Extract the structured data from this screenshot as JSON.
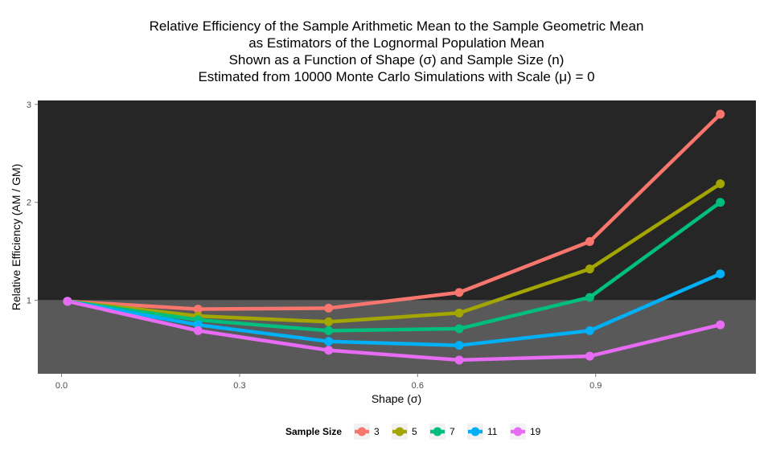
{
  "chart_data": {
    "type": "line",
    "title": [
      "Relative Efficiency of the Sample Arithmetic Mean to the Sample Geometric Mean",
      "as Estimators of the Lognormal Population Mean",
      "Shown as a Function of Shape (σ) and Sample Size (n)",
      "Estimated from 10000 Monte Carlo Simulations with Scale (μ) = 0"
    ],
    "xlabel": "Shape (σ)",
    "ylabel": "Relative Efficiency (AM / GM)",
    "xlim": [
      -0.04,
      1.17
    ],
    "ylim": [
      0.25,
      3.04
    ],
    "x_ticks": [
      0.0,
      0.3,
      0.6,
      0.9
    ],
    "x_tick_labels": [
      "0.0",
      "0.3",
      "0.6",
      "0.9"
    ],
    "y_ticks": [
      1,
      2,
      3
    ],
    "y_tick_labels": [
      "1",
      "2",
      "3"
    ],
    "reference_band": {
      "below": 1,
      "color_below": "#595959",
      "color_above": "#262626"
    },
    "grid": false,
    "legend": {
      "title": "Sample Size",
      "position": "bottom"
    },
    "x": [
      0.01,
      0.23,
      0.45,
      0.67,
      0.89,
      1.11
    ],
    "series": [
      {
        "name": "3",
        "color": "#F8766D",
        "values": [
          0.99,
          0.91,
          0.92,
          1.08,
          1.6,
          2.9
        ]
      },
      {
        "name": "5",
        "color": "#A3A500",
        "values": [
          0.99,
          0.84,
          0.78,
          0.87,
          1.32,
          2.19
        ]
      },
      {
        "name": "7",
        "color": "#00BF7D",
        "values": [
          0.99,
          0.8,
          0.69,
          0.71,
          1.03,
          2.0
        ]
      },
      {
        "name": "11",
        "color": "#00B0F6",
        "values": [
          0.99,
          0.75,
          0.58,
          0.54,
          0.69,
          1.27
        ]
      },
      {
        "name": "19",
        "color": "#E76BF3",
        "values": [
          0.99,
          0.69,
          0.49,
          0.39,
          0.43,
          0.75
        ]
      }
    ]
  }
}
